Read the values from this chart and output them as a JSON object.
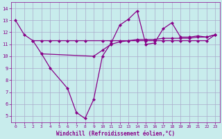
{
  "xlabel": "Windchill (Refroidissement éolien,°C)",
  "background_color": "#c8ecec",
  "grid_color": "#aaaacc",
  "line_color": "#880088",
  "xlim": [
    -0.5,
    23.5
  ],
  "ylim": [
    4.5,
    14.5
  ],
  "xticks": [
    0,
    1,
    2,
    3,
    4,
    5,
    6,
    7,
    8,
    9,
    10,
    11,
    12,
    13,
    14,
    15,
    16,
    17,
    18,
    19,
    20,
    21,
    22,
    23
  ],
  "yticks": [
    5,
    6,
    7,
    8,
    9,
    10,
    11,
    12,
    13,
    14
  ],
  "line1_x": [
    0,
    1,
    2,
    3,
    4,
    6,
    7,
    8,
    9,
    10,
    11,
    12,
    13,
    14,
    15,
    16,
    17,
    18,
    19,
    20,
    21,
    22,
    23
  ],
  "line1_y": [
    13.0,
    11.8,
    11.3,
    10.2,
    9.0,
    7.3,
    5.3,
    4.8,
    6.4,
    10.0,
    11.1,
    12.6,
    13.1,
    13.8,
    11.0,
    11.1,
    12.3,
    12.8,
    11.6,
    11.6,
    11.7,
    11.6,
    11.8
  ],
  "line2_x": [
    2,
    3,
    4,
    5,
    6,
    7,
    8,
    10,
    11,
    12,
    13,
    14,
    15,
    16,
    17,
    18,
    19,
    20,
    21,
    22,
    23
  ],
  "line2_y": [
    11.3,
    11.3,
    11.3,
    11.3,
    11.3,
    11.3,
    11.3,
    11.3,
    11.3,
    11.3,
    11.3,
    11.3,
    11.3,
    11.3,
    11.3,
    11.3,
    11.3,
    11.3,
    11.3,
    11.3,
    11.8
  ],
  "line3_x": [
    3,
    9,
    10,
    11,
    12,
    13,
    14,
    15,
    16,
    17,
    18,
    19,
    20,
    21,
    22,
    23
  ],
  "line3_y": [
    10.2,
    10.0,
    10.5,
    11.0,
    11.2,
    11.3,
    11.4,
    11.4,
    11.4,
    11.5,
    11.5,
    11.5,
    11.5,
    11.6,
    11.6,
    11.8
  ]
}
